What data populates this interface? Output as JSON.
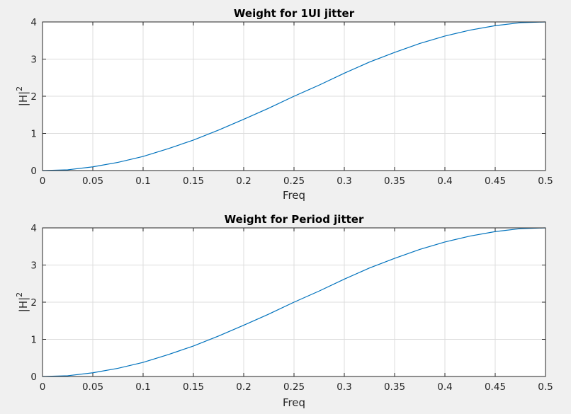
{
  "chart_data": [
    {
      "type": "line",
      "title": "Weight for 1UI jitter",
      "xlabel": "Freq",
      "ylabel_main": "|H|",
      "ylabel_sup": "2",
      "xlim": [
        0,
        0.5
      ],
      "ylim": [
        0,
        4
      ],
      "xticks": [
        0,
        0.05,
        0.1,
        0.15,
        0.2,
        0.25,
        0.3,
        0.35,
        0.4,
        0.45,
        0.5
      ],
      "xtick_labels": [
        "0",
        "0.05",
        "0.1",
        "0.15",
        "0.2",
        "0.25",
        "0.3",
        "0.35",
        "0.4",
        "0.45",
        "0.5"
      ],
      "yticks": [
        0,
        1,
        2,
        3,
        4
      ],
      "ytick_labels": [
        "0",
        "1",
        "2",
        "3",
        "4"
      ],
      "grid": true,
      "line_color": "#0072bd",
      "series": [
        {
          "x": [
            0,
            0.025,
            0.05,
            0.075,
            0.1,
            0.125,
            0.15,
            0.175,
            0.2,
            0.225,
            0.25,
            0.275,
            0.3,
            0.325,
            0.35,
            0.375,
            0.4,
            0.425,
            0.45,
            0.475,
            0.5
          ],
          "y": [
            0,
            0.02,
            0.1,
            0.22,
            0.38,
            0.59,
            0.82,
            1.09,
            1.38,
            1.68,
            2.0,
            2.3,
            2.62,
            2.92,
            3.18,
            3.42,
            3.62,
            3.78,
            3.9,
            3.98,
            4.0
          ]
        }
      ]
    },
    {
      "type": "line",
      "title": "Weight for Period jitter",
      "xlabel": "Freq",
      "ylabel_main": "|H|",
      "ylabel_sup": "2",
      "xlim": [
        0,
        0.5
      ],
      "ylim": [
        0,
        4
      ],
      "xticks": [
        0,
        0.05,
        0.1,
        0.15,
        0.2,
        0.25,
        0.3,
        0.35,
        0.4,
        0.45,
        0.5
      ],
      "xtick_labels": [
        "0",
        "0.05",
        "0.1",
        "0.15",
        "0.2",
        "0.25",
        "0.3",
        "0.35",
        "0.4",
        "0.45",
        "0.5"
      ],
      "yticks": [
        0,
        1,
        2,
        3,
        4
      ],
      "ytick_labels": [
        "0",
        "1",
        "2",
        "3",
        "4"
      ],
      "grid": true,
      "line_color": "#0072bd",
      "series": [
        {
          "x": [
            0,
            0.025,
            0.05,
            0.075,
            0.1,
            0.125,
            0.15,
            0.175,
            0.2,
            0.225,
            0.25,
            0.275,
            0.3,
            0.325,
            0.35,
            0.375,
            0.4,
            0.425,
            0.45,
            0.475,
            0.5
          ],
          "y": [
            0,
            0.02,
            0.1,
            0.22,
            0.38,
            0.59,
            0.82,
            1.09,
            1.38,
            1.68,
            2.0,
            2.3,
            2.62,
            2.92,
            3.18,
            3.42,
            3.62,
            3.78,
            3.9,
            3.98,
            4.0
          ]
        }
      ]
    }
  ]
}
